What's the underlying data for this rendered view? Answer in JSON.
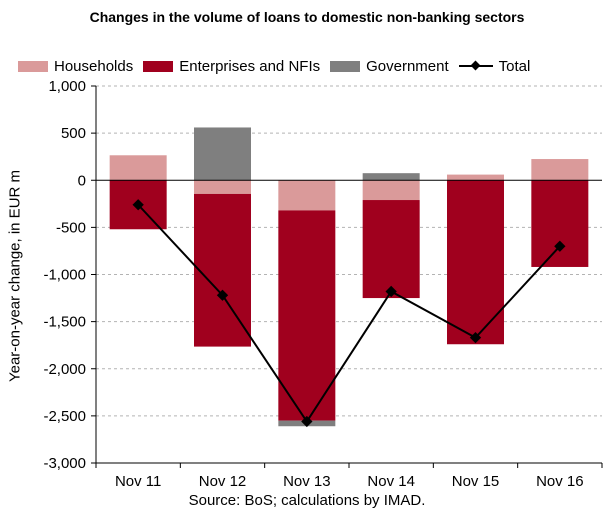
{
  "chart_data": {
    "type": "bar",
    "stacked": true,
    "title": "Changes in the volume of loans to domestic non-banking sectors",
    "ylabel": "Year-on-year change, in EUR m",
    "source": "Source: BoS; calculations by IMAD.",
    "categories": [
      "Nov 11",
      "Nov 12",
      "Nov 13",
      "Nov 14",
      "Nov 15",
      "Nov 16"
    ],
    "ylim": [
      -3000,
      1000
    ],
    "yticks": [
      1000,
      500,
      0,
      -500,
      -1000,
      -1500,
      -2000,
      -2500,
      -3000
    ],
    "ytick_labels": [
      "1,000",
      "500",
      "0",
      "-500",
      "-1,000",
      "-1,500",
      "-2,000",
      "-2,500",
      "-3,000"
    ],
    "grid": true,
    "legend_position": "top",
    "series": [
      {
        "name": "Households",
        "kind": "bar",
        "color": "#DA9A9A",
        "values": [
          265,
          -145,
          -320,
          -210,
          60,
          225
        ]
      },
      {
        "name": "Enterprises and NFIs",
        "kind": "bar",
        "color": "#A0001E",
        "values": [
          -520,
          -1620,
          -2230,
          -1040,
          -1740,
          -920
        ]
      },
      {
        "name": "Government",
        "kind": "bar",
        "color": "#7F7F7F",
        "values": [
          0,
          560,
          -60,
          75,
          0,
          0
        ]
      },
      {
        "name": "Total",
        "kind": "line",
        "color": "#000000",
        "values": [
          -260,
          -1220,
          -2560,
          -1180,
          -1670,
          -700
        ]
      }
    ]
  }
}
